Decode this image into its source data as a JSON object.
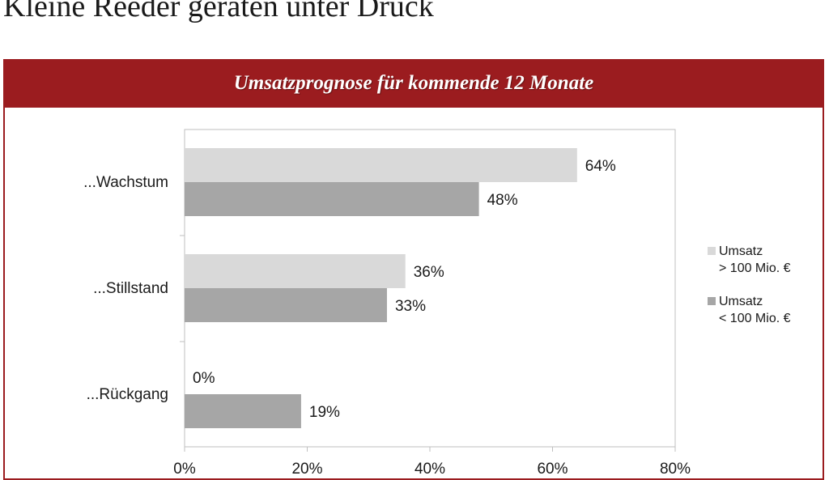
{
  "page": {
    "title": "Kleine Reeder geraten unter Druck"
  },
  "panel": {
    "header": "Umsatzprognose für kommende 12 Monate"
  },
  "colors": {
    "brand_red": "#9b1c1f",
    "series_large": "#d9d9d9",
    "series_small": "#a6a6a6"
  },
  "chart_data": {
    "type": "bar",
    "orientation": "horizontal",
    "categories": [
      "...Wachstum",
      "...Stillstand",
      "...Rückgang"
    ],
    "series": [
      {
        "name": "Umsatz > 100 Mio. €",
        "name_lines": [
          "Umsatz",
          "> 100 Mio. €"
        ],
        "values": [
          64,
          36,
          0
        ],
        "labels": [
          "64%",
          "36%",
          "0%"
        ]
      },
      {
        "name": "Umsatz < 100 Mio. €",
        "name_lines": [
          "Umsatz",
          "< 100 Mio. €"
        ],
        "values": [
          48,
          33,
          19
        ],
        "labels": [
          "48%",
          "33%",
          "19%"
        ]
      }
    ],
    "xlim": [
      0,
      80
    ],
    "xticks": [
      0,
      20,
      40,
      60,
      80
    ],
    "xtick_labels": [
      "0%",
      "20%",
      "40%",
      "60%",
      "80%"
    ],
    "grid": false,
    "legend_position": "right"
  }
}
